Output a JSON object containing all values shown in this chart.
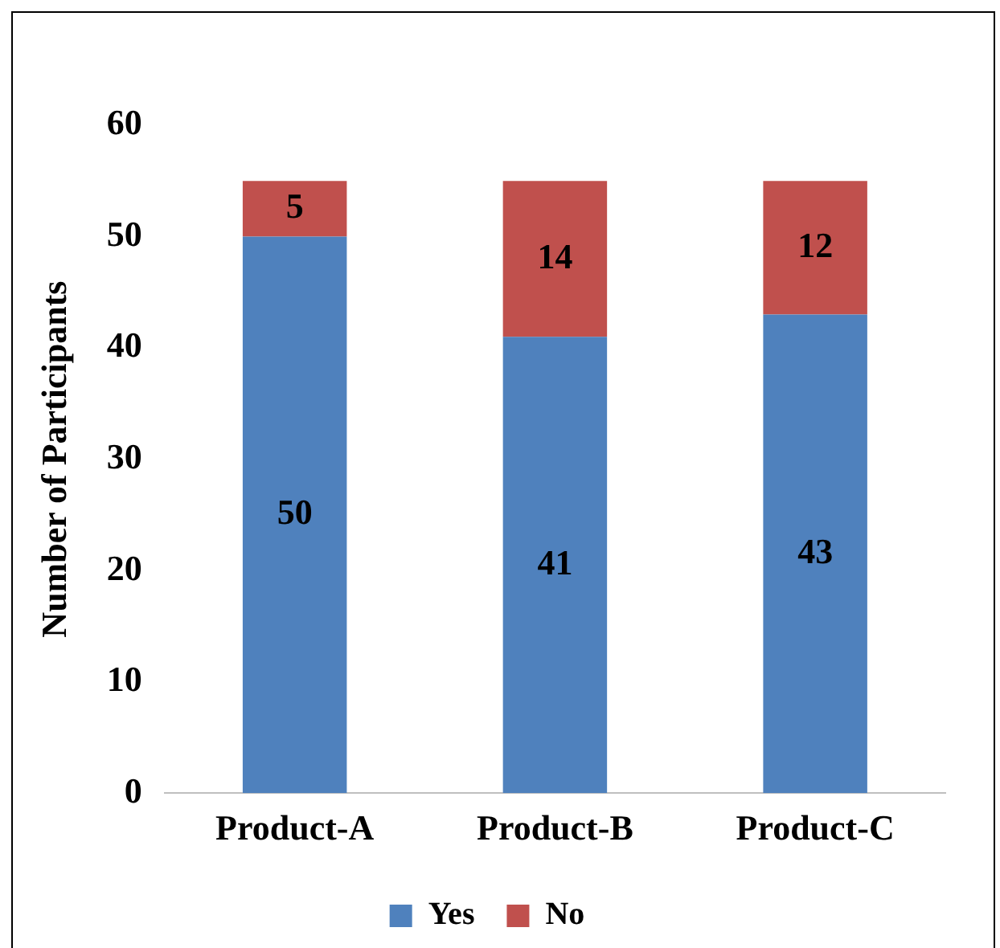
{
  "chart_data": {
    "type": "bar",
    "ylabel": "Number of Participants",
    "categories": [
      "Product-A",
      "Product-B",
      "Product-C"
    ],
    "series": [
      {
        "name": "Yes",
        "color": "#4f81bd",
        "values": [
          50,
          41,
          43
        ]
      },
      {
        "name": "No",
        "color": "#c0504d",
        "values": [
          5,
          14,
          12
        ]
      }
    ],
    "stacked": true,
    "ylim": [
      0,
      60
    ],
    "yticks": [
      0,
      10,
      20,
      30,
      40,
      50,
      60
    ],
    "grid": false,
    "legend": "bottom",
    "data_labels": true
  }
}
